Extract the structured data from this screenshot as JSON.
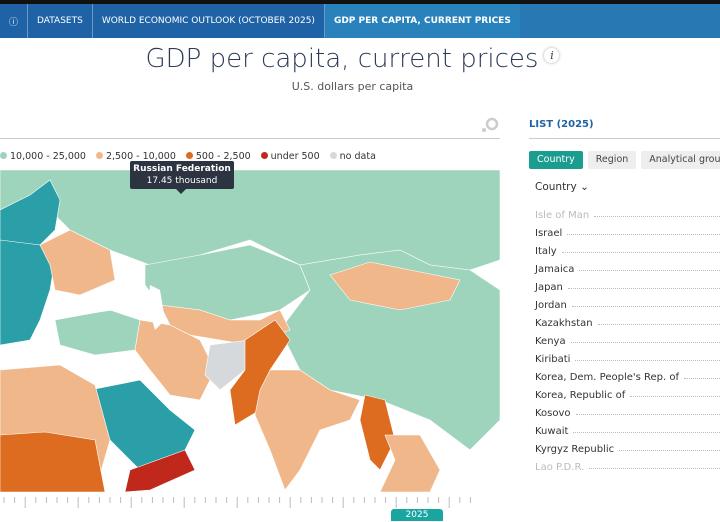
{
  "breadcrumb": {
    "items": [
      "DATASETS",
      "WORLD ECONOMIC OUTLOOK (OCTOBER 2025)",
      "GDP PER CAPITA, CURRENT PRICES"
    ]
  },
  "header": {
    "title": "GDP per capita, current prices",
    "info": "i",
    "subtitle": "U.S. dollars per capita"
  },
  "legend": [
    {
      "label": "10,000 - 25,000",
      "color": "#9ed3bc"
    },
    {
      "label": "2,500 - 10,000",
      "color": "#f0b88a"
    },
    {
      "label": "500 - 2,500",
      "color": "#dd6b20"
    },
    {
      "label": "under 500",
      "color": "#c0281c"
    },
    {
      "label": "no data",
      "color": "#d6d9dc"
    }
  ],
  "tooltip": {
    "country": "Russian Federation",
    "value": "17.45 thousand"
  },
  "timeline": {
    "year": "2025"
  },
  "list": {
    "title": "LIST (2025)",
    "tabs": [
      "Country",
      "Region",
      "Analytical group"
    ],
    "sort_label": "Country",
    "rows": [
      "Isle of Man",
      "Israel",
      "Italy",
      "Jamaica",
      "Japan",
      "Jordan",
      "Kazakhstan",
      "Kenya",
      "Kiribati",
      "Korea, Dem. People's Rep. of",
      "Korea, Republic of",
      "Kosovo",
      "Kuwait",
      "Kyrgyz Republic",
      "Lao P.D.R."
    ]
  }
}
